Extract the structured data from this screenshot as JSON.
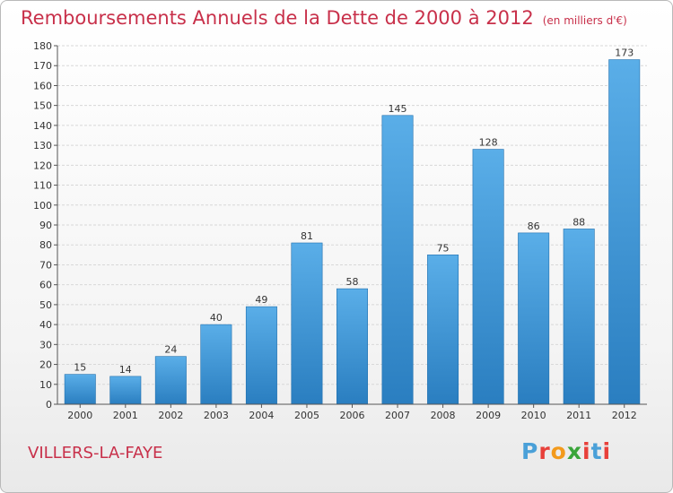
{
  "title": "Remboursements Annuels de la Dette de 2000 à 2012",
  "subtitle": "(en milliers d'€)",
  "commune": "VILLERS-LA-FAYE",
  "logo": {
    "text": "Proxiti",
    "colors": [
      "#4aa0d8",
      "#e8403a",
      "#f39a1c",
      "#3aa53a",
      "#e8403a",
      "#4aa0d8",
      "#e8403a"
    ]
  },
  "colors": {
    "title": "#c8304a",
    "bar_light": "#5aaee8",
    "bar_dark": "#2a7ec0",
    "grid": "#d8d8d8",
    "axis": "#555555"
  },
  "chart_data": {
    "type": "bar",
    "title": "Remboursements Annuels de la Dette de 2000 à 2012",
    "subtitle": "(en milliers d'€)",
    "xlabel": "",
    "ylabel": "",
    "categories": [
      "2000",
      "2001",
      "2002",
      "2003",
      "2004",
      "2005",
      "2006",
      "2007",
      "2008",
      "2009",
      "2010",
      "2011",
      "2012"
    ],
    "values": [
      15,
      14,
      24,
      40,
      49,
      81,
      58,
      145,
      75,
      128,
      86,
      88,
      173
    ],
    "ylim": [
      0,
      180
    ],
    "yticks": [
      0,
      10,
      20,
      30,
      40,
      50,
      60,
      70,
      80,
      90,
      100,
      110,
      120,
      130,
      140,
      150,
      160,
      170,
      180
    ],
    "grid": true
  }
}
